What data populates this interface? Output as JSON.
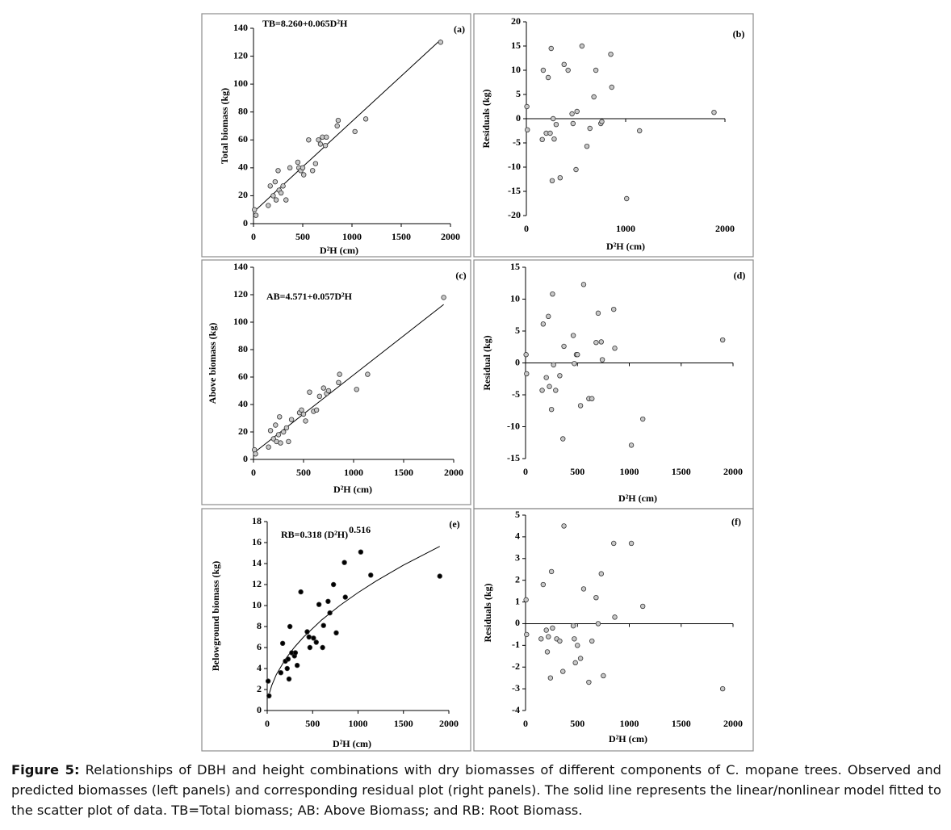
{
  "chart_data": [
    {
      "type": "scatter",
      "annotation": "TB=8.260+0.065D²H",
      "panel_label": "(a)",
      "x_label": "D²H (cm)",
      "y_label": "Total biomass (kg)",
      "color": "#c8c8c8",
      "x": [
        10,
        25,
        150,
        170,
        200,
        220,
        230,
        250,
        260,
        280,
        300,
        330,
        370,
        450,
        460,
        480,
        500,
        510,
        560,
        600,
        630,
        660,
        680,
        700,
        730,
        740,
        850,
        860,
        1030,
        1140,
        1900
      ],
      "values": [
        10,
        6,
        13,
        27,
        20,
        30,
        17,
        38,
        24,
        22,
        27,
        17,
        40,
        44,
        40,
        38,
        40,
        35,
        60,
        38,
        43,
        60,
        57,
        62,
        56,
        62,
        70,
        74,
        66,
        75,
        130
      ],
      "fit": {
        "x": [
          0,
          1900
        ],
        "values": [
          8.26,
          131.76
        ]
      },
      "xlim": [
        0,
        2000
      ],
      "ylim": [
        0,
        140
      ],
      "xticks": [
        0,
        500,
        1000,
        1500,
        2000
      ],
      "yticks": [
        0,
        20,
        40,
        60,
        80,
        100,
        120,
        140
      ]
    },
    {
      "type": "scatter",
      "panel_label": "(b)",
      "x_label": "D²H (cm)",
      "y_label": "Residuals (kg)",
      "color": "#c8c8c8",
      "zero_line": true,
      "x": [
        5,
        10,
        160,
        170,
        200,
        220,
        240,
        250,
        260,
        270,
        280,
        300,
        340,
        380,
        420,
        460,
        470,
        500,
        510,
        560,
        610,
        640,
        680,
        700,
        750,
        760,
        850,
        860,
        1010,
        1140,
        1890
      ],
      "values": [
        2.5,
        -2.3,
        -4.3,
        10,
        -3,
        8.5,
        -3,
        14.5,
        -12.8,
        0,
        -4.2,
        -1.2,
        -12.2,
        11.2,
        10,
        1,
        -1,
        -10.5,
        1.5,
        15,
        -5.7,
        -2,
        4.5,
        10,
        -1,
        -0.6,
        13.3,
        6.5,
        -16.5,
        -2.5,
        1.3
      ],
      "xlim": [
        0,
        2000
      ],
      "ylim": [
        -20,
        20
      ],
      "xticks": [
        0,
        1000,
        2000
      ],
      "yticks": [
        -20,
        -15,
        -10,
        -5,
        0,
        5,
        10,
        15,
        20
      ]
    },
    {
      "type": "scatter",
      "annotation": "AB=4.571+0.057D²H",
      "panel_label": "(c)",
      "x_label": "D²H (cm)",
      "y_label": "Above  biomass (kg)",
      "color": "#c8c8c8",
      "x": [
        10,
        20,
        150,
        170,
        200,
        220,
        230,
        250,
        260,
        270,
        300,
        330,
        350,
        380,
        460,
        480,
        500,
        520,
        560,
        600,
        630,
        660,
        700,
        730,
        750,
        850,
        860,
        1030,
        1140,
        1900
      ],
      "values": [
        7,
        4,
        9,
        21,
        15,
        25,
        13,
        18,
        31,
        12,
        20,
        23,
        13,
        29,
        34,
        36,
        33,
        28,
        49,
        35,
        36,
        46,
        52,
        48,
        50,
        56,
        62,
        51,
        62,
        118
      ],
      "fit": {
        "x": [
          0,
          1900
        ],
        "values": [
          4.571,
          112.871
        ]
      },
      "xlim": [
        0,
        2000
      ],
      "ylim": [
        0,
        140
      ],
      "xticks": [
        0,
        500,
        1000,
        1500,
        2000
      ],
      "yticks": [
        0,
        20,
        40,
        60,
        80,
        100,
        120,
        140
      ]
    },
    {
      "type": "scatter",
      "panel_label": "(d)",
      "x_label": "D²H (cm)",
      "y_label": "Residual (kg)",
      "color": "#c8c8c8",
      "zero_line": true,
      "x": [
        5,
        10,
        160,
        170,
        200,
        220,
        230,
        250,
        260,
        270,
        290,
        330,
        360,
        370,
        460,
        470,
        490,
        500,
        530,
        560,
        610,
        640,
        680,
        700,
        730,
        740,
        850,
        860,
        1020,
        1130,
        1900
      ],
      "values": [
        1.3,
        -1.7,
        -4.3,
        6.1,
        -2.3,
        7.3,
        -3.7,
        -7.3,
        10.8,
        -0.3,
        -4.3,
        -2,
        -11.9,
        2.6,
        4.3,
        -0.1,
        1.3,
        1.3,
        -6.7,
        12.3,
        -5.6,
        -5.6,
        3.2,
        7.8,
        3.3,
        0.5,
        8.4,
        2.3,
        -12.9,
        -8.8,
        3.6
      ],
      "xlim": [
        0,
        2000
      ],
      "ylim": [
        -15,
        15
      ],
      "xticks": [
        0,
        500,
        1000,
        1500,
        2000
      ],
      "yticks": [
        -15,
        -10,
        -5,
        0,
        5,
        10,
        15
      ]
    },
    {
      "type": "scatter",
      "annotation": "RB=0.318 (D²H)",
      "annotation_exponent": "0.516",
      "panel_label": "(e)",
      "x_label": "D²H (cm)",
      "y_label": "Belowground biomass (kg)",
      "color": "#000000",
      "x": [
        10,
        20,
        150,
        170,
        200,
        220,
        230,
        240,
        250,
        270,
        300,
        310,
        330,
        370,
        440,
        460,
        470,
        510,
        540,
        570,
        620,
        610,
        670,
        690,
        730,
        760,
        850,
        860,
        1030,
        1140,
        1900
      ],
      "values": [
        2.8,
        1.4,
        3.6,
        6.4,
        4.7,
        4,
        4.9,
        3,
        8,
        5.5,
        5.2,
        5.5,
        4.3,
        11.3,
        7.5,
        7,
        6,
        6.9,
        6.5,
        10.1,
        8.1,
        6,
        10.4,
        9.3,
        12,
        7.4,
        14.1,
        10.8,
        15.1,
        12.9,
        12.8
      ],
      "fit": {
        "x": [
          25,
          50,
          100,
          200,
          300,
          400,
          600,
          800,
          1000,
          1200,
          1500,
          1900
        ],
        "values": [
          1.67,
          2.39,
          3.42,
          4.89,
          6.03,
          7.0,
          8.63,
          10.01,
          11.23,
          12.34,
          13.85,
          15.64
        ]
      },
      "xlim": [
        0,
        2000
      ],
      "ylim": [
        0,
        18
      ],
      "xticks": [
        0,
        500,
        1000,
        1500,
        2000
      ],
      "yticks": [
        0,
        2,
        4,
        6,
        8,
        10,
        12,
        14,
        16,
        18
      ]
    },
    {
      "type": "scatter",
      "panel_label": "(f)",
      "x_label": "D²H (cm)",
      "y_label": "Residuals (kg)",
      "color": "#c8c8c8",
      "zero_line": true,
      "x": [
        5,
        10,
        150,
        170,
        200,
        210,
        220,
        240,
        250,
        260,
        300,
        330,
        360,
        370,
        460,
        470,
        480,
        500,
        530,
        560,
        610,
        640,
        680,
        700,
        730,
        750,
        850,
        860,
        1020,
        1130,
        1900
      ],
      "values": [
        1.1,
        -0.5,
        -0.7,
        1.8,
        -0.3,
        -1.3,
        -0.6,
        -2.5,
        2.4,
        -0.2,
        -0.7,
        -0.8,
        -2.2,
        4.5,
        -0.1,
        -0.7,
        -1.8,
        -1,
        -1.6,
        1.6,
        -2.7,
        -0.8,
        1.2,
        0,
        2.3,
        -2.4,
        3.7,
        0.3,
        3.7,
        0.8,
        -3
      ],
      "xlim": [
        0,
        2000
      ],
      "ylim": [
        -4,
        5
      ],
      "xticks": [
        0,
        500,
        1000,
        1500,
        2000
      ],
      "yticks": [
        -4,
        -3,
        -2,
        -1,
        0,
        1,
        2,
        3,
        4,
        5
      ]
    }
  ],
  "caption": {
    "label": "Figure 5:",
    "text": " Relationships of DBH and height combinations with dry biomasses of different components of C. mopane trees. Observed and predicted biomasses (left panels) and corresponding residual plot (right panels).  The solid line represents the linear/nonlinear model fitted to the scatter plot of data. TB=Total biomass; AB: Above Biomass; and RB: Root Biomass."
  }
}
